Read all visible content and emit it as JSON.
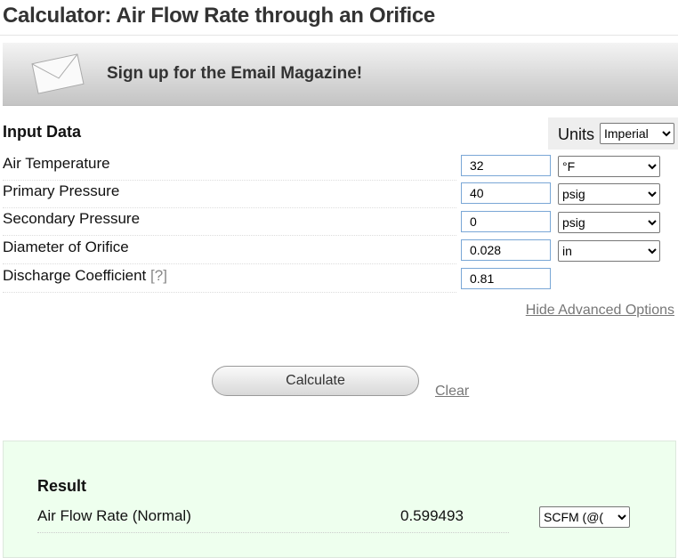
{
  "title": "Calculator: Air Flow Rate through an Orifice",
  "banner": {
    "text": "Sign up for the Email Magazine!",
    "icon": "envelope-icon"
  },
  "input": {
    "heading": "Input Data",
    "units_label": "Units",
    "units_value": "Imperial",
    "rows": [
      {
        "label": "Air Temperature",
        "value": "32",
        "unit": "°F"
      },
      {
        "label": "Primary Pressure",
        "value": "40",
        "unit": "psig"
      },
      {
        "label": "Secondary Pressure",
        "value": "0",
        "unit": "psig"
      },
      {
        "label": "Diameter of Orifice",
        "value": "0.028",
        "unit": "in"
      },
      {
        "label": "Discharge Coefficient",
        "help": "[?]",
        "value": "0.81"
      }
    ],
    "advanced_link": "Hide Advanced Options"
  },
  "actions": {
    "calculate": "Calculate",
    "clear": "Clear"
  },
  "result": {
    "heading": "Result",
    "label": "Air Flow Rate (Normal)",
    "value": "0.599493",
    "unit": "SCFM (@("
  }
}
